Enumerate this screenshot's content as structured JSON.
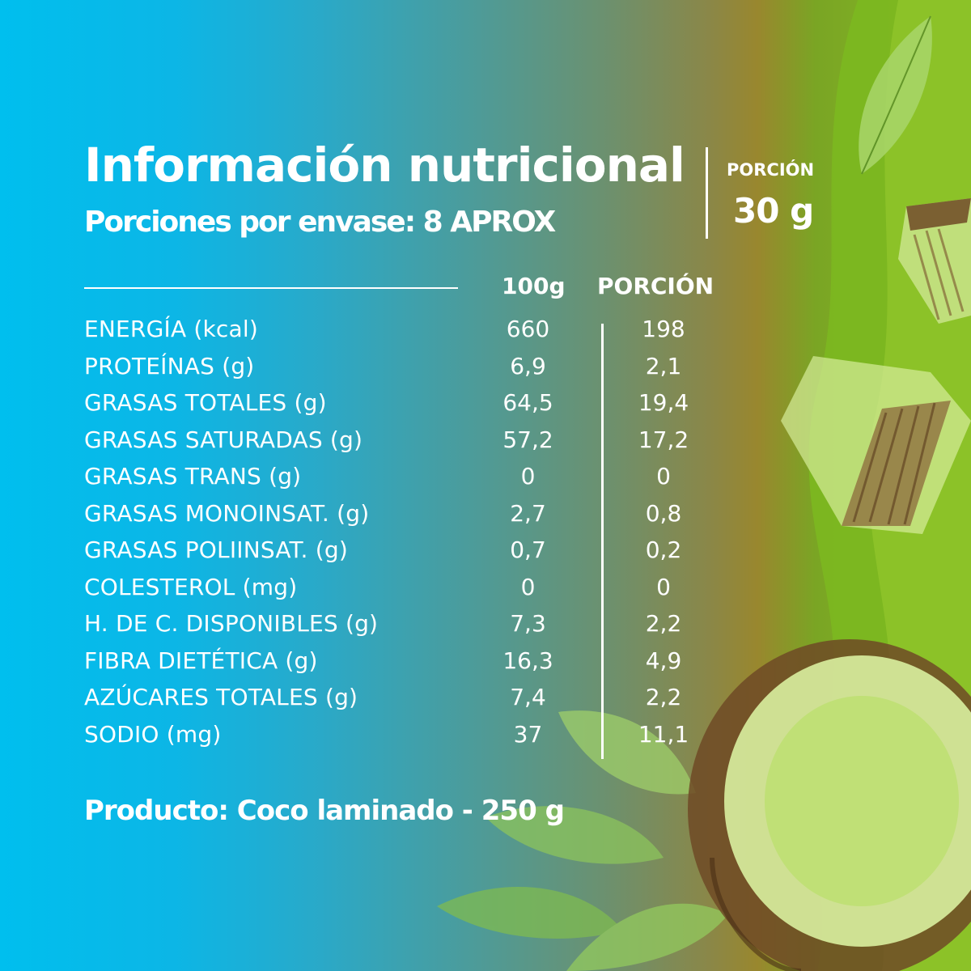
{
  "header": {
    "title": "Información nutricional",
    "subtitle": "Porciones por envase: 8 APROX",
    "portion_label": "PORCIÓN",
    "portion_value": "30 g"
  },
  "table": {
    "columns": [
      "100g",
      "PORCIÓN"
    ],
    "rows": [
      {
        "nutrient": "ENERGÍA (kcal)",
        "per_100g": "660",
        "per_portion": "198"
      },
      {
        "nutrient": "PROTEÍNAS (g)",
        "per_100g": "6,9",
        "per_portion": "2,1"
      },
      {
        "nutrient": "GRASAS TOTALES (g)",
        "per_100g": "64,5",
        "per_portion": "19,4"
      },
      {
        "nutrient": "GRASAS SATURADAS (g)",
        "per_100g": "57,2",
        "per_portion": "17,2"
      },
      {
        "nutrient": "GRASAS TRANS (g)",
        "per_100g": "0",
        "per_portion": "0"
      },
      {
        "nutrient": "GRASAS MONOINSAT. (g)",
        "per_100g": "2,7",
        "per_portion": "0,8"
      },
      {
        "nutrient": "GRASAS POLIINSAT. (g)",
        "per_100g": "0,7",
        "per_portion": "0,2"
      },
      {
        "nutrient": "COLESTEROL (mg)",
        "per_100g": "0",
        "per_portion": "0"
      },
      {
        "nutrient": "H. DE C. DISPONIBLES (g)",
        "per_100g": "7,3",
        "per_portion": "2,2"
      },
      {
        "nutrient": "FIBRA DIETÉTICA (g)",
        "per_100g": "16,3",
        "per_portion": "4,9"
      },
      {
        "nutrient": "AZÚCARES TOTALES (g)",
        "per_100g": "7,4",
        "per_portion": "2,2"
      },
      {
        "nutrient": "SODIO (mg)",
        "per_100g": "37",
        "per_portion": "11,1"
      }
    ]
  },
  "footer": {
    "product": "Producto: Coco laminado - 250 g"
  },
  "colors": {
    "gradient_left": "#00bfee",
    "gradient_mid": "#4b9c9c",
    "gradient_right": "#86bb22",
    "text": "#ffffff"
  },
  "decor_icons": [
    "coconut-chunk-icon",
    "coconut-half-icon",
    "leaf-icon"
  ]
}
